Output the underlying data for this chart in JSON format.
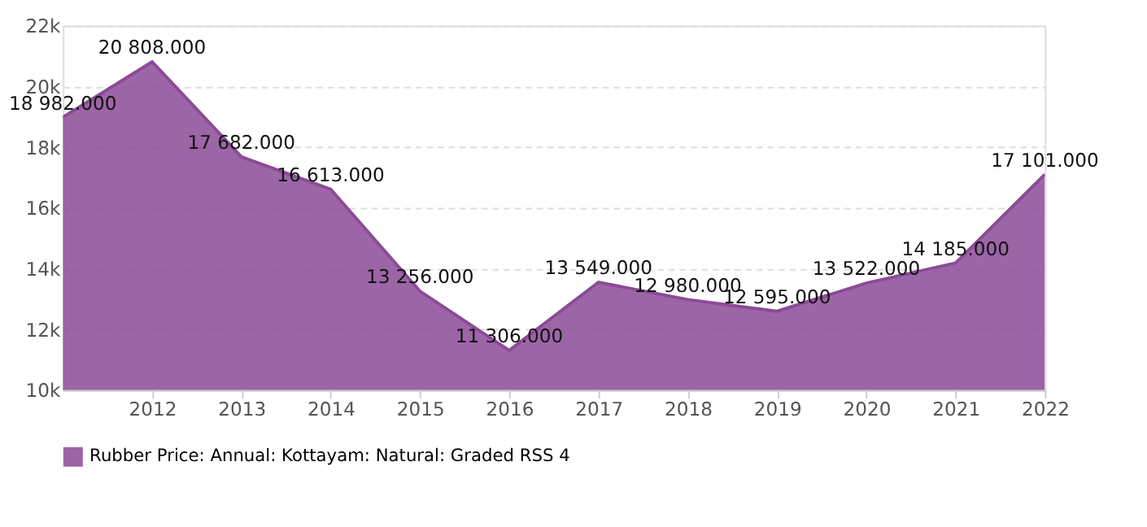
{
  "chart_data": {
    "type": "area",
    "x": [
      2011,
      2012,
      2013,
      2014,
      2015,
      2016,
      2017,
      2018,
      2019,
      2020,
      2021,
      2022
    ],
    "series": [
      {
        "name": "Rubber Price: Annual: Kottayam: Natural: Graded RSS 4",
        "color": "#8b4a96",
        "values": [
          18982,
          20808,
          17682,
          16613,
          13256,
          11306,
          13549,
          12980,
          12595,
          13522,
          14185,
          17101
        ],
        "value_labels": [
          "18 982.000",
          "20 808.000",
          "17 682.000",
          "16 613.000",
          "13 256.000",
          "11 306.000",
          "13 549.000",
          "12 980.000",
          "12 595.000",
          "13 522.000",
          "14 185.000",
          "17 101.000"
        ]
      }
    ],
    "xlim": [
      2011,
      2022
    ],
    "xticks": [
      2012,
      2013,
      2014,
      2015,
      2016,
      2017,
      2018,
      2019,
      2020,
      2021,
      2022
    ],
    "ylim": [
      10000,
      22000
    ],
    "yticks": [
      {
        "value": 10000,
        "label": "10k"
      },
      {
        "value": 12000,
        "label": "12k"
      },
      {
        "value": 14000,
        "label": "14k"
      },
      {
        "value": 16000,
        "label": "16k"
      },
      {
        "value": 18000,
        "label": "18k"
      },
      {
        "value": 20000,
        "label": "20k"
      },
      {
        "value": 22000,
        "label": "22k"
      }
    ],
    "grid": "y",
    "legend": "bottom"
  }
}
